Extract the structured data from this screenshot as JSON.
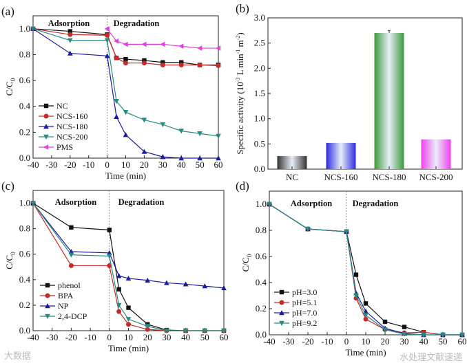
{
  "chart_data": [
    {
      "panel_label": "(a)",
      "type": "line",
      "xlabel": "Time (min)",
      "ylabel": "C/C",
      "ylabel_sub": "0",
      "xlim": [
        -40,
        60
      ],
      "ylim": [
        0,
        1.1
      ],
      "xticks": [
        "-40",
        "-30",
        "-20",
        "-10",
        "0",
        "10",
        "20",
        "30",
        "40",
        "50",
        "60"
      ],
      "yticks": [
        "0.0",
        "0.2",
        "0.4",
        "0.6",
        "0.8",
        "1.0"
      ],
      "annotations": [
        "Adsorption",
        "Degradation"
      ],
      "legend_position": "bottom-left",
      "series": [
        {
          "name": "NC",
          "marker": "square",
          "color": "#111111",
          "x": [
            -40,
            -20,
            0,
            5,
            10,
            20,
            30,
            40,
            50,
            60
          ],
          "y": [
            1.0,
            0.98,
            0.955,
            0.775,
            0.765,
            0.755,
            0.74,
            0.74,
            0.72,
            0.72
          ]
        },
        {
          "name": "NCS-160",
          "marker": "circle",
          "color": "#c42a2a",
          "x": [
            -40,
            -20,
            0,
            5,
            10,
            20,
            30,
            40,
            50,
            60
          ],
          "y": [
            1.0,
            0.955,
            0.95,
            0.775,
            0.735,
            0.735,
            0.72,
            0.72,
            0.72,
            0.715
          ]
        },
        {
          "name": "NCS-180",
          "marker": "triangle-up",
          "color": "#1c1c96",
          "x": [
            -40,
            -20,
            0,
            5,
            10,
            20,
            30,
            40,
            50,
            60
          ],
          "y": [
            1.0,
            0.81,
            0.79,
            0.32,
            0.18,
            0.05,
            0.01,
            0.0,
            0.0,
            0.0
          ]
        },
        {
          "name": "NCS-200",
          "marker": "triangle-down",
          "color": "#2a8a80",
          "x": [
            -40,
            -20,
            0,
            5,
            10,
            20,
            30,
            40,
            50,
            60
          ],
          "y": [
            1.0,
            0.91,
            0.91,
            0.44,
            0.355,
            0.295,
            0.26,
            0.21,
            0.19,
            0.17
          ]
        },
        {
          "name": "PMS",
          "marker": "triangle-left",
          "color": "#e040e0",
          "x": [
            0,
            5,
            10,
            20,
            30,
            40,
            50,
            60
          ],
          "y": [
            1.0,
            0.905,
            0.88,
            0.88,
            0.88,
            0.865,
            0.85,
            0.85
          ]
        }
      ]
    },
    {
      "panel_label": "(b)",
      "type": "bar",
      "ylabel": "Specific activity (10",
      "ylabel_sup1": "-3",
      "ylabel_mid": " L min",
      "ylabel_sup2": "-1",
      "ylabel_mid2": " m",
      "ylabel_sup3": "-2",
      "ylabel_end": ")",
      "ylim": [
        0,
        3.0
      ],
      "yticks": [
        "0.0",
        "0.5",
        "1.0",
        "1.5",
        "2.0",
        "2.5",
        "3.0"
      ],
      "categories": [
        "NC",
        "NCS-160",
        "NCS-180",
        "NCS-200"
      ],
      "values": [
        0.26,
        0.52,
        2.7,
        0.59
      ],
      "errors": [
        0,
        0,
        0.05,
        0
      ],
      "colors": [
        "#333333",
        "#2a2ae0",
        "#3a9a3a",
        "#f040f0"
      ]
    },
    {
      "panel_label": "(c)",
      "type": "line",
      "xlabel": "Time (min)",
      "ylabel": "C/C",
      "ylabel_sub": "0",
      "xlim": [
        -40,
        60
      ],
      "ylim": [
        0,
        1.1
      ],
      "xticks": [
        "-40",
        "-30",
        "-20",
        "-10",
        "0",
        "10",
        "20",
        "30",
        "40",
        "50",
        "60"
      ],
      "yticks": [
        "0.0",
        "0.2",
        "0.4",
        "0.6",
        "0.8",
        "1.0"
      ],
      "annotations": [
        "Adsorption",
        "Degradation"
      ],
      "legend_position": "bottom-left",
      "series": [
        {
          "name": "phenol",
          "marker": "square",
          "color": "#111111",
          "x": [
            -40,
            -20,
            0,
            5,
            10,
            20,
            30,
            40,
            50,
            60
          ],
          "y": [
            1.0,
            0.81,
            0.79,
            0.325,
            0.18,
            0.05,
            0.005,
            0,
            0,
            0
          ]
        },
        {
          "name": "BPA",
          "marker": "circle",
          "color": "#c42a2a",
          "x": [
            -40,
            -20,
            0,
            5,
            10,
            20,
            30,
            40,
            50,
            60
          ],
          "y": [
            1.0,
            0.51,
            0.51,
            0.15,
            0.05,
            0.01,
            0,
            0,
            0,
            0
          ]
        },
        {
          "name": "NP",
          "marker": "triangle-up",
          "color": "#1c1c96",
          "x": [
            -40,
            -20,
            0,
            5,
            10,
            20,
            30,
            40,
            50,
            60
          ],
          "y": [
            1.0,
            0.62,
            0.61,
            0.43,
            0.41,
            0.395,
            0.375,
            0.365,
            0.35,
            0.335
          ]
        },
        {
          "name": "2,4-DCP",
          "marker": "triangle-down",
          "color": "#2a8a80",
          "x": [
            -40,
            -20,
            0,
            5,
            10,
            20,
            30,
            40,
            50,
            60
          ],
          "y": [
            1.0,
            0.595,
            0.585,
            0.2,
            0.09,
            0.035,
            0,
            0,
            0,
            0
          ]
        }
      ]
    },
    {
      "panel_label": "(d)",
      "type": "line",
      "xlabel": "Time (min)",
      "ylabel": "C/C",
      "ylabel_sub": "0",
      "xlim": [
        -40,
        60
      ],
      "ylim": [
        0,
        1.1
      ],
      "xticks": [
        "-40",
        "-30",
        "-20",
        "-10",
        "0",
        "10",
        "20",
        "30",
        "40",
        "50",
        "60"
      ],
      "yticks": [
        "0.0",
        "0.2",
        "0.4",
        "0.6",
        "0.8",
        "1.0"
      ],
      "annotations": [
        "Adsorption",
        "Degradation"
      ],
      "legend_position": "bottom-left",
      "series": [
        {
          "name": "pH=3.0",
          "marker": "square",
          "color": "#111111",
          "x": [
            -40,
            -20,
            0,
            5,
            10,
            20,
            30,
            40,
            50,
            60
          ],
          "y": [
            1.0,
            0.81,
            0.79,
            0.46,
            0.24,
            0.1,
            0.06,
            0.02,
            0,
            0
          ]
        },
        {
          "name": "pH=5.1",
          "marker": "circle",
          "color": "#c42a2a",
          "x": [
            -40,
            -20,
            0,
            5,
            10,
            20,
            30,
            40,
            50,
            60
          ],
          "y": [
            1.0,
            0.81,
            0.79,
            0.28,
            0.12,
            0.04,
            0.015,
            0.02,
            0,
            0
          ]
        },
        {
          "name": "pH=7.0",
          "marker": "triangle-up",
          "color": "#1c1c96",
          "x": [
            -40,
            -20,
            0,
            5,
            10,
            20,
            30,
            40,
            50,
            60
          ],
          "y": [
            1.0,
            0.81,
            0.79,
            0.32,
            0.18,
            0.05,
            0.01,
            0,
            0,
            0
          ]
        },
        {
          "name": "pH=9.2",
          "marker": "triangle-down",
          "color": "#2a8a80",
          "x": [
            -40,
            -20,
            0,
            5,
            10,
            20,
            30,
            40,
            50,
            60
          ],
          "y": [
            1.0,
            0.81,
            0.79,
            0.3,
            0.15,
            0.04,
            0.005,
            0,
            0,
            0
          ]
        }
      ]
    }
  ],
  "watermarks": [
    "大数据",
    "水处理文献速递"
  ]
}
